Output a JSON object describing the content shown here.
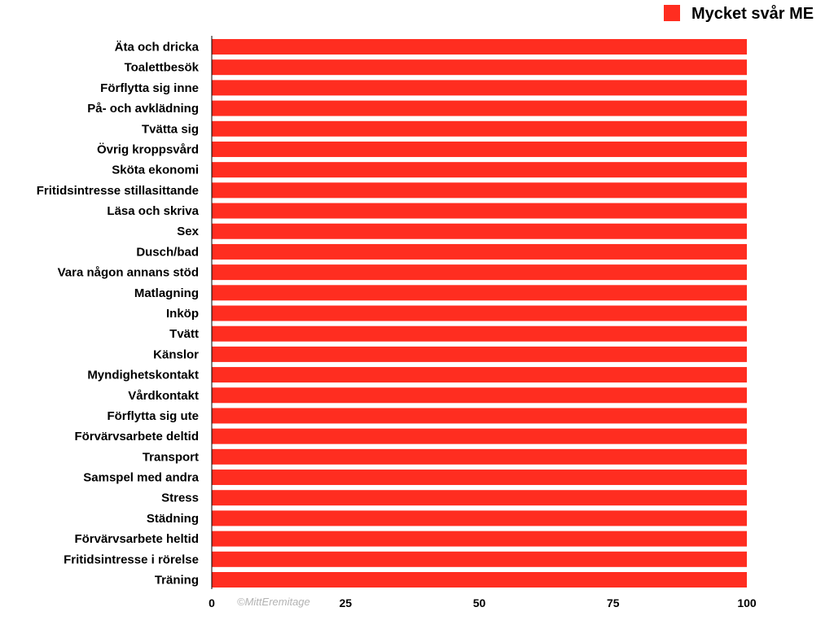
{
  "chart_data": {
    "type": "bar",
    "orientation": "horizontal",
    "categories": [
      "Äta och dricka",
      "Toalettbesök",
      "Förflytta sig inne",
      "På- och avklädning",
      "Tvätta sig",
      "Övrig kroppsvård",
      "Sköta ekonomi",
      "Fritidsintresse stillasittande",
      "Läsa och skriva",
      "Sex",
      "Dusch/bad",
      "Vara någon annans stöd",
      "Matlagning",
      "Inköp",
      "Tvätt",
      "Känslor",
      "Myndighetskontakt",
      "Vårdkontakt",
      "Förflytta sig ute",
      "Förvärvsarbete deltid",
      "Transport",
      "Samspel med andra",
      "Stress",
      "Städning",
      "Förvärvsarbete heltid",
      "Fritidsintresse i rörelse",
      "Träning"
    ],
    "series": [
      {
        "name": "Mycket svår ME",
        "color": "#ff2d20",
        "values": [
          100,
          100,
          100,
          100,
          100,
          100,
          100,
          100,
          100,
          100,
          100,
          100,
          100,
          100,
          100,
          100,
          100,
          100,
          100,
          100,
          100,
          100,
          100,
          100,
          100,
          100,
          100
        ]
      }
    ],
    "xlim": [
      0,
      100
    ],
    "xticks": [
      "0",
      "25",
      "50",
      "75",
      "100"
    ],
    "grid": false,
    "legend_position": "top-right",
    "watermark": "©MittEremitage"
  }
}
